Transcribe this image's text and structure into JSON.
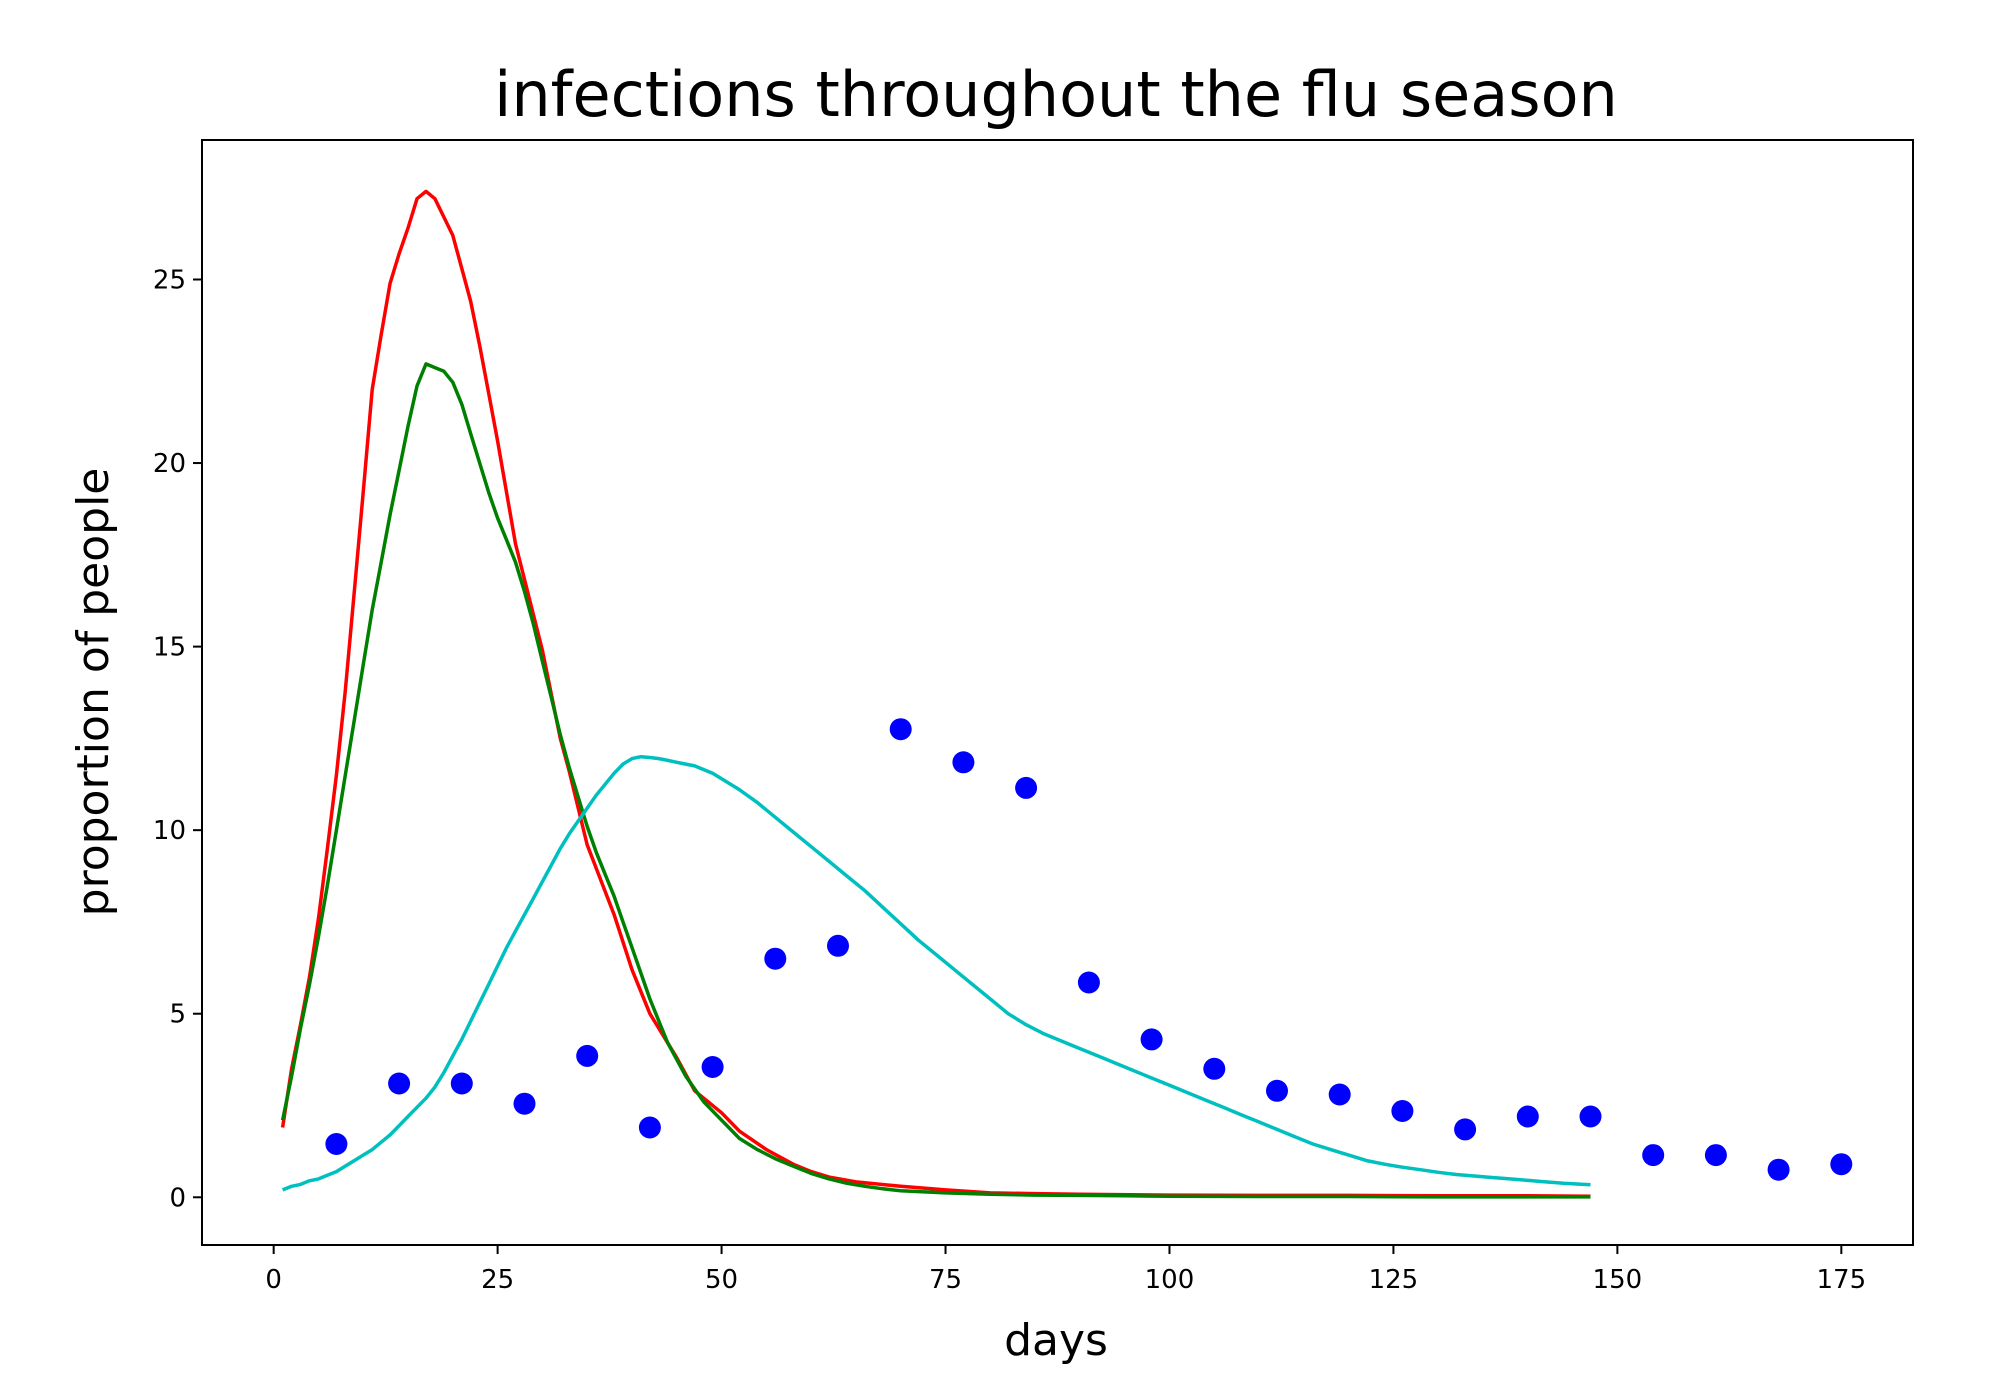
{
  "chart_data": {
    "type": "line",
    "title": "infections throughout the flu season",
    "xlabel": "days",
    "ylabel": "proportion of people",
    "xlim": [
      -8,
      183
    ],
    "ylim": [
      -1.3,
      28.8
    ],
    "xticks": [
      0,
      25,
      50,
      75,
      100,
      125,
      150,
      175
    ],
    "yticks": [
      0,
      5,
      10,
      15,
      20,
      25
    ],
    "grid": false,
    "legend": "none",
    "series": [
      {
        "type": "line",
        "color": "#ff0000",
        "x": [
          1,
          2,
          3,
          4,
          5,
          6,
          7,
          8,
          9,
          10,
          11,
          12,
          13,
          14,
          15,
          16,
          17,
          18,
          19,
          20,
          21,
          22,
          23,
          24,
          25,
          27,
          30,
          32,
          33,
          35,
          38,
          40,
          42,
          45,
          47,
          50,
          52,
          55,
          58,
          60,
          62,
          65,
          70,
          75,
          80,
          85,
          90,
          100,
          110,
          120,
          130,
          140,
          147
        ],
        "y": [
          1.9,
          3.5,
          4.7,
          6.0,
          7.6,
          9.5,
          11.5,
          13.8,
          16.5,
          19.2,
          22.0,
          23.5,
          24.9,
          25.7,
          26.4,
          27.2,
          27.4,
          27.2,
          26.7,
          26.2,
          25.3,
          24.4,
          23.2,
          21.9,
          20.6,
          17.8,
          14.9,
          12.5,
          11.6,
          9.6,
          7.7,
          6.2,
          5.0,
          3.8,
          2.9,
          2.3,
          1.8,
          1.3,
          0.9,
          0.7,
          0.55,
          0.42,
          0.3,
          0.2,
          0.12,
          0.1,
          0.08,
          0.06,
          0.05,
          0.05,
          0.04,
          0.04,
          0.03
        ]
      },
      {
        "type": "line",
        "color": "#008000",
        "x": [
          1,
          2,
          3,
          4,
          5,
          6,
          7,
          8,
          9,
          10,
          11,
          12,
          13,
          14,
          15,
          16,
          17,
          18,
          19,
          20,
          21,
          22,
          23,
          24,
          25,
          26,
          27,
          28,
          29,
          30,
          31,
          32,
          33,
          34,
          35,
          36,
          37,
          38,
          39,
          40,
          42,
          44,
          46,
          48,
          50,
          52,
          54,
          56,
          58,
          60,
          62,
          64,
          66,
          68,
          70,
          75,
          80,
          85,
          90,
          95,
          100,
          110,
          120,
          130,
          140,
          147
        ],
        "y": [
          2.1,
          3.3,
          4.6,
          5.8,
          7.1,
          8.5,
          10.0,
          11.5,
          13.0,
          14.5,
          16.0,
          17.3,
          18.6,
          19.8,
          21.0,
          22.1,
          22.7,
          22.6,
          22.5,
          22.2,
          21.6,
          20.8,
          20.0,
          19.2,
          18.5,
          17.9,
          17.3,
          16.5,
          15.6,
          14.6,
          13.6,
          12.6,
          11.7,
          10.9,
          10.1,
          9.4,
          8.8,
          8.2,
          7.5,
          6.8,
          5.4,
          4.2,
          3.3,
          2.6,
          2.1,
          1.6,
          1.3,
          1.05,
          0.85,
          0.65,
          0.5,
          0.38,
          0.3,
          0.23,
          0.18,
          0.12,
          0.08,
          0.06,
          0.05,
          0.04,
          0.03,
          0.02,
          0.02,
          0.01,
          0.01,
          0.01
        ]
      },
      {
        "type": "line",
        "color": "#00bfbf",
        "x": [
          1,
          2,
          3,
          4,
          5,
          6,
          7,
          8,
          9,
          10,
          11,
          12,
          13,
          14,
          15,
          16,
          17,
          18,
          19,
          20,
          21,
          22,
          23,
          24,
          25,
          26,
          27,
          28,
          29,
          30,
          31,
          32,
          33,
          34,
          35,
          36,
          37,
          38,
          39,
          40,
          41,
          42,
          43,
          44,
          45,
          46,
          47,
          48,
          49,
          50,
          52,
          54,
          56,
          58,
          60,
          62,
          64,
          66,
          68,
          70,
          72,
          74,
          76,
          78,
          80,
          82,
          84,
          86,
          88,
          90,
          92,
          94,
          96,
          98,
          100,
          102,
          104,
          106,
          108,
          110,
          112,
          114,
          116,
          118,
          120,
          122,
          124,
          126,
          128,
          130,
          132,
          134,
          136,
          138,
          140,
          142,
          144,
          147
        ],
        "y": [
          0.2,
          0.3,
          0.35,
          0.45,
          0.5,
          0.6,
          0.7,
          0.85,
          1.0,
          1.15,
          1.3,
          1.5,
          1.7,
          1.95,
          2.2,
          2.45,
          2.7,
          3.0,
          3.4,
          3.85,
          4.3,
          4.8,
          5.3,
          5.8,
          6.3,
          6.8,
          7.25,
          7.7,
          8.15,
          8.6,
          9.05,
          9.5,
          9.9,
          10.25,
          10.6,
          10.95,
          11.25,
          11.55,
          11.8,
          11.95,
          12.0,
          11.98,
          11.95,
          11.9,
          11.85,
          11.8,
          11.75,
          11.65,
          11.55,
          11.4,
          11.1,
          10.75,
          10.35,
          9.95,
          9.55,
          9.15,
          8.75,
          8.35,
          7.9,
          7.45,
          7.0,
          6.6,
          6.2,
          5.8,
          5.4,
          5.0,
          4.7,
          4.45,
          4.25,
          4.05,
          3.85,
          3.65,
          3.45,
          3.25,
          3.05,
          2.85,
          2.65,
          2.45,
          2.25,
          2.05,
          1.85,
          1.65,
          1.45,
          1.3,
          1.15,
          1.0,
          0.9,
          0.82,
          0.75,
          0.68,
          0.62,
          0.58,
          0.54,
          0.5,
          0.46,
          0.42,
          0.38,
          0.34
        ]
      },
      {
        "type": "scatter",
        "color": "#0000ff",
        "x": [
          7,
          14,
          21,
          28,
          35,
          42,
          49,
          56,
          63,
          70,
          77,
          84,
          91,
          98,
          105,
          112,
          119,
          126,
          133,
          140,
          147,
          154,
          161,
          168,
          175
        ],
        "y": [
          1.45,
          3.1,
          3.1,
          2.55,
          3.85,
          1.9,
          3.55,
          6.5,
          6.85,
          12.75,
          11.85,
          11.15,
          5.85,
          4.3,
          3.5,
          2.9,
          2.8,
          2.35,
          1.85,
          2.2,
          2.2,
          1.15,
          1.15,
          0.75,
          0.9
        ]
      }
    ]
  }
}
